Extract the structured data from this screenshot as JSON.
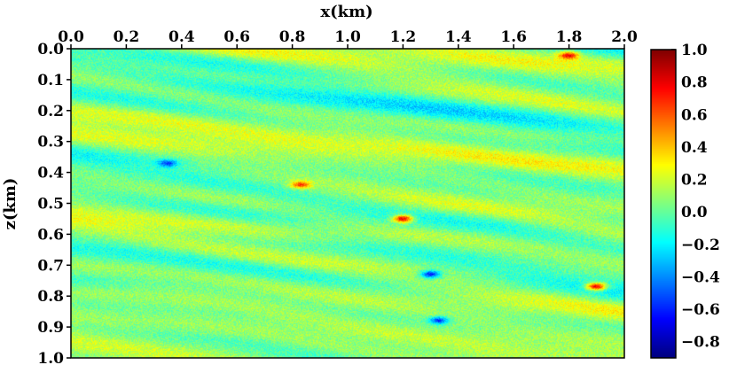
{
  "chart_data": {
    "type": "heatmap",
    "title": "",
    "xlabel": "x(km)",
    "ylabel": "z(km)",
    "x_axis_position": "top",
    "xlim": [
      0.0,
      2.0
    ],
    "ylim": [
      0.0,
      1.0
    ],
    "y_inverted": true,
    "xticks": [
      "0.0",
      "0.2",
      "0.4",
      "0.6",
      "0.8",
      "1.0",
      "1.2",
      "1.4",
      "1.6",
      "1.8",
      "2.0"
    ],
    "yticks": [
      "0.0",
      "0.1",
      "0.2",
      "0.3",
      "0.4",
      "0.5",
      "0.6",
      "0.7",
      "0.8",
      "0.9",
      "1.0"
    ],
    "colormap": "jet",
    "color_range": [
      -0.9,
      1.0
    ],
    "colorbar_ticks": [
      "1.0",
      "0.8",
      "0.6",
      "0.4",
      "0.2",
      "0.0",
      "−0.2",
      "−0.4",
      "−0.6",
      "−0.8"
    ],
    "colorbar_tick_values": [
      1.0,
      0.8,
      0.6,
      0.4,
      0.2,
      0.0,
      -0.2,
      -0.4,
      -0.6,
      -0.8
    ],
    "colorbar_placement": "right",
    "grid": false,
    "field_description": "random dipping layered perturbation field, values mostly between -0.3 and 0.4",
    "hotspots": [
      {
        "x": 1.2,
        "z": 0.55,
        "value": 0.9
      },
      {
        "x": 1.9,
        "z": 0.77,
        "value": 0.95
      },
      {
        "x": 1.8,
        "z": 0.02,
        "value": 0.7
      },
      {
        "x": 0.83,
        "z": 0.44,
        "value": 0.6
      },
      {
        "x": 1.3,
        "z": 0.73,
        "value": -0.7
      },
      {
        "x": 1.33,
        "z": 0.88,
        "value": -0.6
      },
      {
        "x": 0.35,
        "z": 0.37,
        "value": -0.5
      }
    ]
  }
}
